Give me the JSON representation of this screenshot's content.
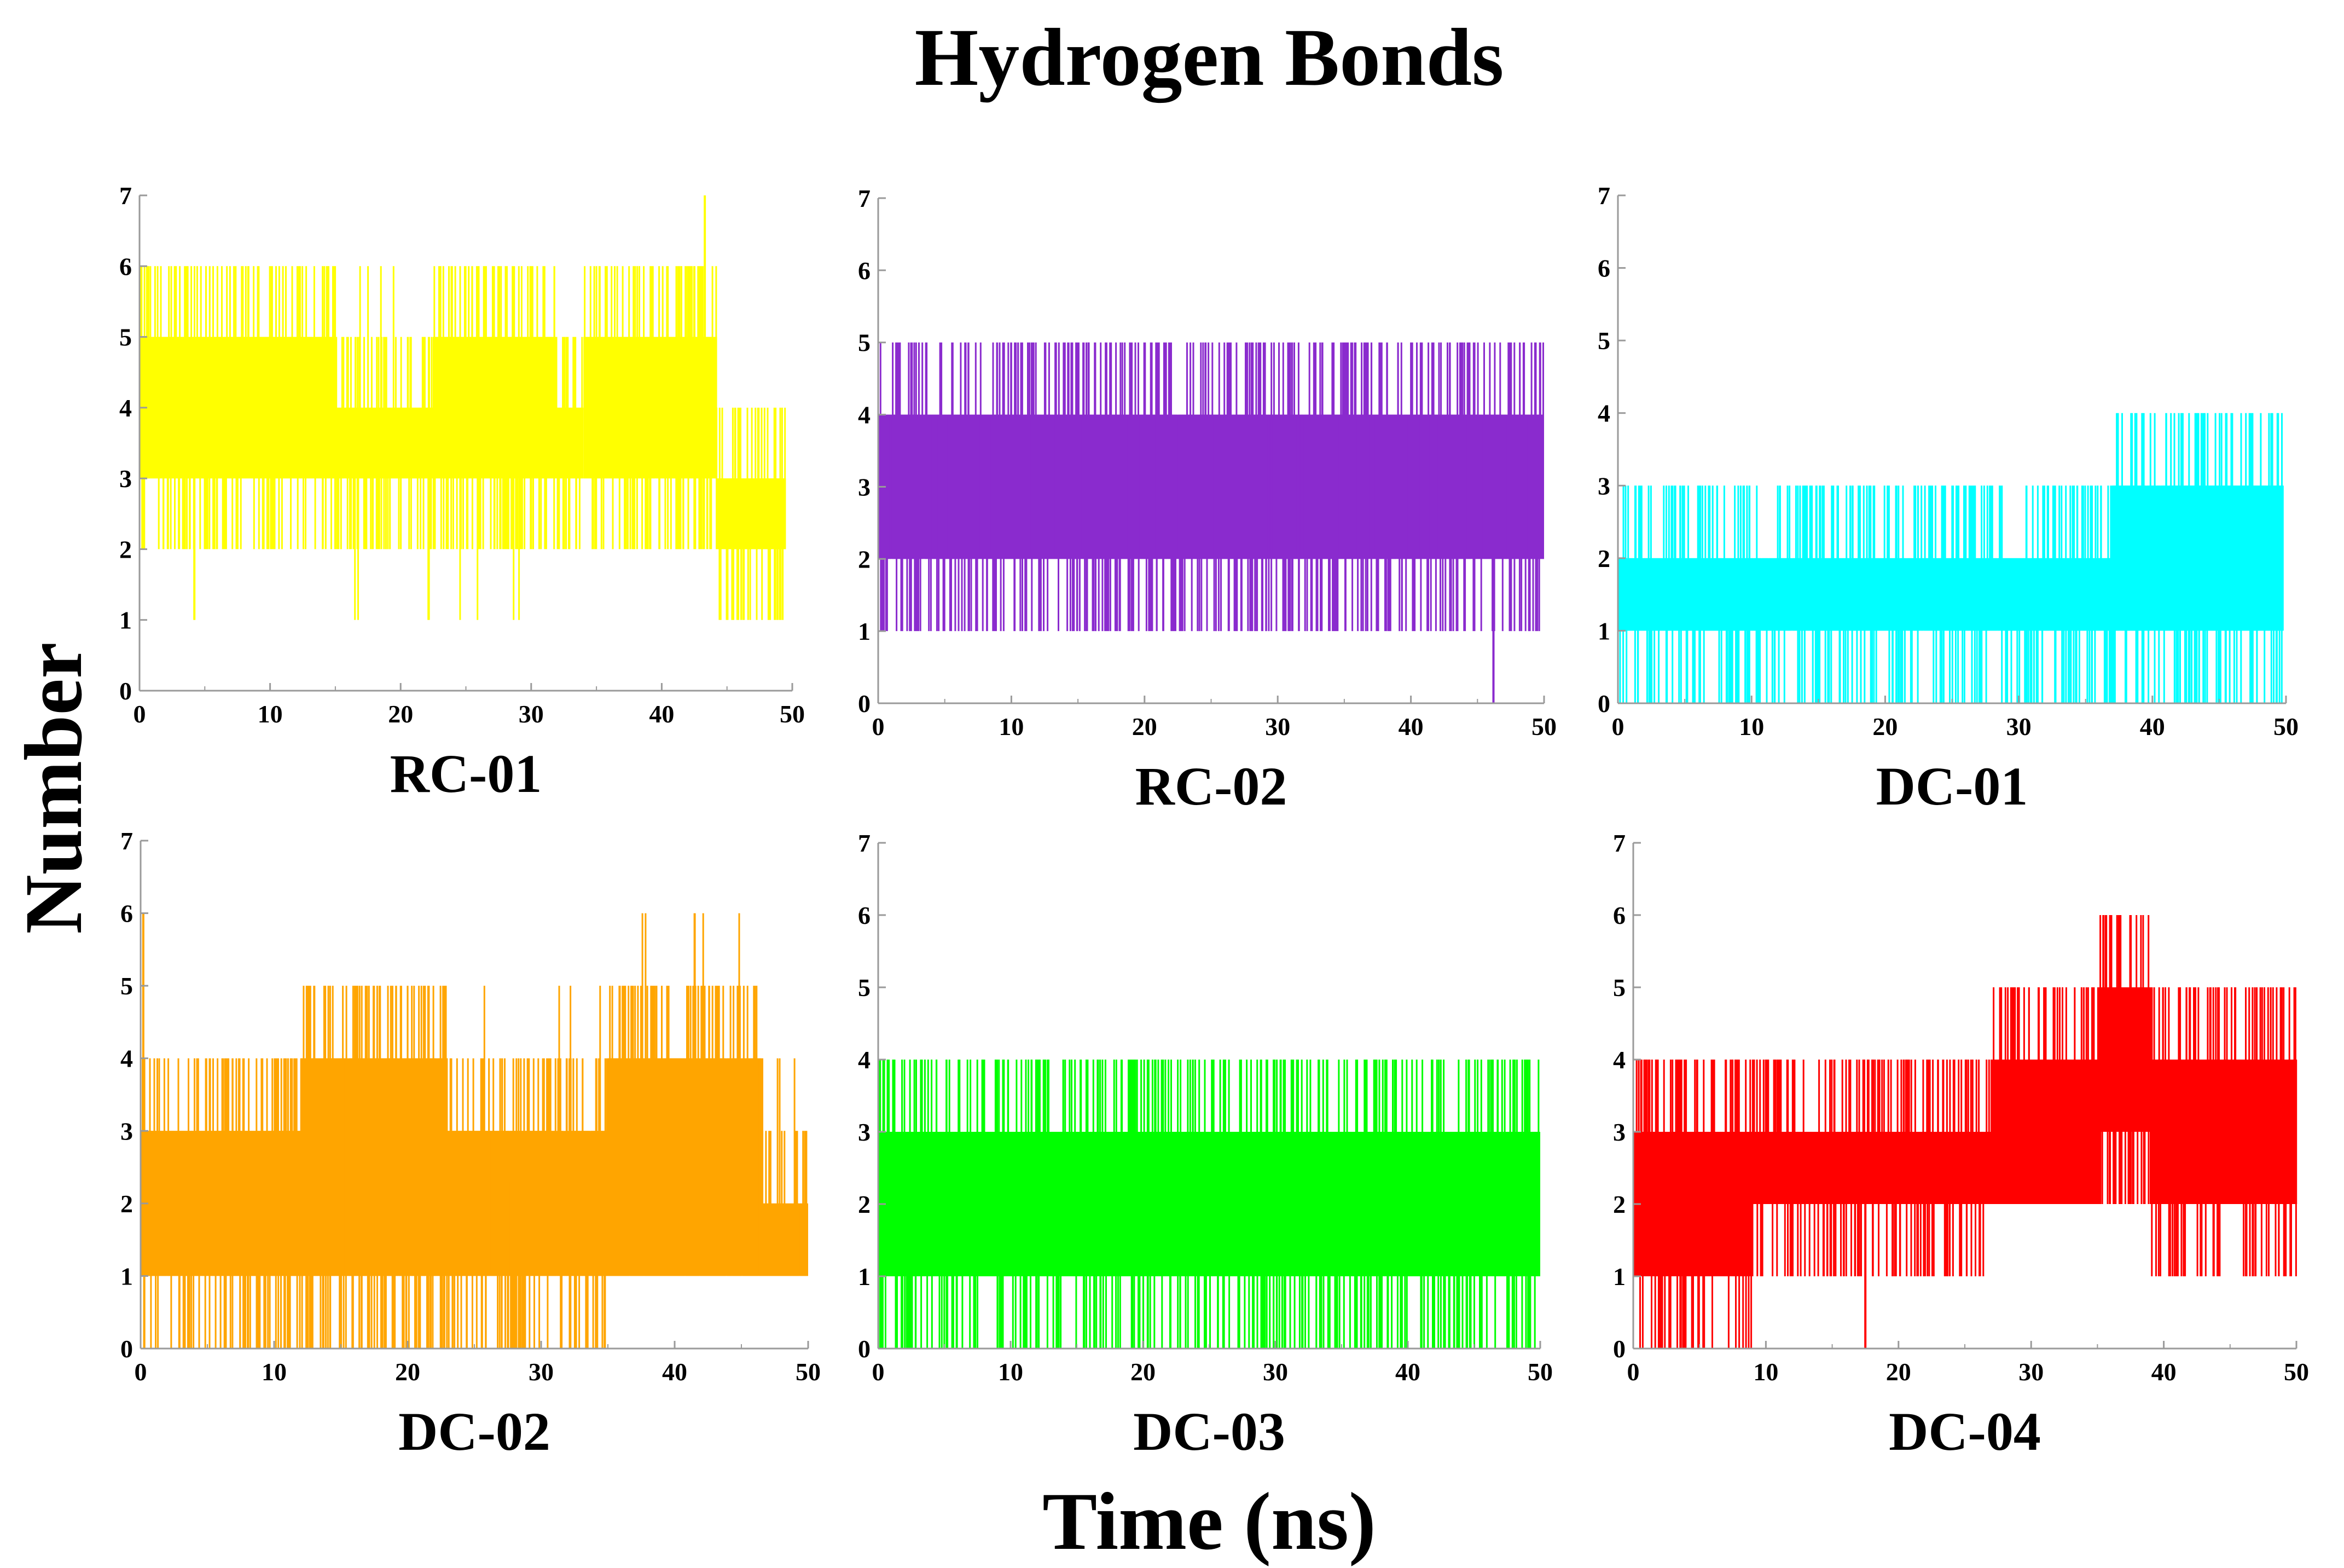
{
  "title": "Hydrogen Bonds",
  "xlabel": "Time (ns)",
  "ylabel": "Number",
  "chart_data": [
    {
      "type": "line",
      "title": "RC-01",
      "color": "#FFFF00",
      "xlim": [
        0,
        50
      ],
      "ylim": [
        0,
        7
      ],
      "xticks": [
        0,
        10,
        20,
        30,
        40,
        50
      ],
      "yticks": [
        0,
        1,
        2,
        3,
        4,
        5,
        6,
        7
      ],
      "x_end": 49.5,
      "segments": [
        {
          "from": 0,
          "to": 15,
          "low": 3,
          "high": 5,
          "min": 2,
          "max": 6
        },
        {
          "from": 15,
          "to": 22.5,
          "low": 3,
          "high": 4,
          "min": 1,
          "max": 6
        },
        {
          "from": 22.5,
          "to": 32,
          "low": 3,
          "high": 5,
          "min": 1,
          "max": 6
        },
        {
          "from": 32,
          "to": 34,
          "low": 3,
          "high": 4,
          "min": 2,
          "max": 5
        },
        {
          "from": 34,
          "to": 44.2,
          "low": 3,
          "high": 5,
          "min": 2,
          "max": 6
        },
        {
          "from": 44.2,
          "to": 49.5,
          "low": 2,
          "high": 3,
          "min": 1,
          "max": 4
        }
      ],
      "spikes": [
        {
          "x": 43.3,
          "y": 7
        },
        {
          "x": 4.2,
          "y": 1
        }
      ]
    },
    {
      "type": "line",
      "title": "RC-02",
      "color": "#8A2BCE",
      "xlim": [
        0,
        50
      ],
      "ylim": [
        0,
        7
      ],
      "xticks": [
        0,
        10,
        20,
        30,
        40,
        50
      ],
      "yticks": [
        0,
        1,
        2,
        3,
        4,
        5,
        6,
        7
      ],
      "x_end": 50,
      "segments": [
        {
          "from": 0,
          "to": 50,
          "low": 2,
          "high": 4,
          "min": 1,
          "max": 5
        }
      ],
      "spikes": [
        {
          "x": 46.2,
          "y": 0
        },
        {
          "x": 15.8,
          "y": 5
        }
      ]
    },
    {
      "type": "line",
      "title": "DC-01",
      "color": "#00FFFF",
      "xlim": [
        0,
        50
      ],
      "ylim": [
        0,
        7
      ],
      "xticks": [
        0,
        10,
        20,
        30,
        40,
        50
      ],
      "yticks": [
        0,
        1,
        2,
        3,
        4,
        5,
        6,
        7
      ],
      "x_end": 49.8,
      "segments": [
        {
          "from": 0,
          "to": 37,
          "low": 1,
          "high": 2,
          "min": 0,
          "max": 3
        },
        {
          "from": 37,
          "to": 49.8,
          "low": 1,
          "high": 3,
          "min": 0,
          "max": 4
        }
      ],
      "spikes": []
    },
    {
      "type": "line",
      "title": "DC-02",
      "color": "#FFA500",
      "xlim": [
        0,
        50
      ],
      "ylim": [
        0,
        7
      ],
      "xticks": [
        0,
        10,
        20,
        30,
        40,
        50
      ],
      "yticks": [
        0,
        1,
        2,
        3,
        4,
        5,
        6,
        7
      ],
      "x_end": 50,
      "segments": [
        {
          "from": 0,
          "to": 12,
          "low": 1,
          "high": 3,
          "min": 0,
          "max": 4
        },
        {
          "from": 12,
          "to": 23,
          "low": 1,
          "high": 4,
          "min": 0,
          "max": 5
        },
        {
          "from": 23,
          "to": 35,
          "low": 1,
          "high": 3,
          "min": 0,
          "max": 5
        },
        {
          "from": 35,
          "to": 46.5,
          "low": 1,
          "high": 4,
          "min": 1,
          "max": 6
        },
        {
          "from": 46.5,
          "to": 50,
          "low": 1,
          "high": 2,
          "min": 1,
          "max": 4
        }
      ],
      "spikes": [
        {
          "x": 0.2,
          "y": 6
        },
        {
          "x": 41.5,
          "y": 6
        }
      ]
    },
    {
      "type": "line",
      "title": "DC-03",
      "color": "#00FF00",
      "xlim": [
        0,
        50
      ],
      "ylim": [
        0,
        7
      ],
      "xticks": [
        0,
        10,
        20,
        30,
        40,
        50
      ],
      "yticks": [
        0,
        1,
        2,
        3,
        4,
        5,
        6,
        7
      ],
      "x_end": 50,
      "segments": [
        {
          "from": 0,
          "to": 50,
          "low": 1,
          "high": 3,
          "min": 0,
          "max": 4
        }
      ],
      "spikes": []
    },
    {
      "type": "line",
      "title": "DC-04",
      "color": "#FF0000",
      "xlim": [
        0,
        50
      ],
      "ylim": [
        0,
        7
      ],
      "xticks": [
        0,
        10,
        20,
        30,
        40,
        50
      ],
      "yticks": [
        0,
        1,
        2,
        3,
        4,
        5,
        6,
        7
      ],
      "x_end": 50,
      "segments": [
        {
          "from": 0,
          "to": 9,
          "low": 1,
          "high": 3,
          "min": 0,
          "max": 4
        },
        {
          "from": 9,
          "to": 27,
          "low": 2,
          "high": 3,
          "min": 1,
          "max": 4
        },
        {
          "from": 27,
          "to": 35,
          "low": 2,
          "high": 4,
          "min": 2,
          "max": 5
        },
        {
          "from": 35,
          "to": 39,
          "low": 3,
          "high": 5,
          "min": 2,
          "max": 6
        },
        {
          "from": 39,
          "to": 50,
          "low": 2,
          "high": 4,
          "min": 1,
          "max": 5
        }
      ],
      "spikes": [
        {
          "x": 37.5,
          "y": 6
        },
        {
          "x": 17.5,
          "y": 0
        }
      ]
    }
  ]
}
